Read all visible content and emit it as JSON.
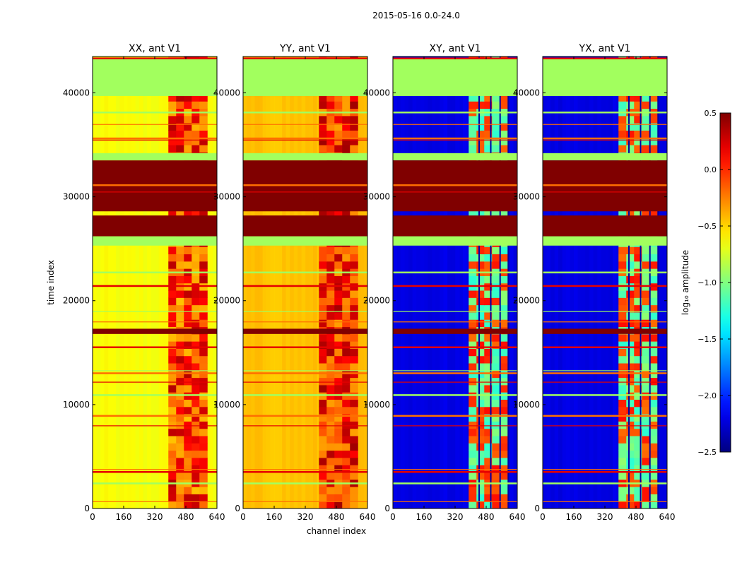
{
  "figure": {
    "suptitle": "2015-05-16 0.0-24.0",
    "ylabel": "time index",
    "xlabel": "channel index",
    "colorbar_label": "log₁₀ amplitude"
  },
  "chart_data": {
    "type": "heatmap",
    "colormap": "jet",
    "value_range": [
      -2.5,
      0.5
    ],
    "colorbar_ticks": [
      "0.5",
      "0.0",
      "−0.5",
      "−1.0",
      "−1.5",
      "−2.0",
      "−2.5"
    ],
    "colorbar_tick_values": [
      0.5,
      0.0,
      -0.5,
      -1.0,
      -1.5,
      -2.0,
      -2.5
    ],
    "x_range": [
      0,
      640
    ],
    "y_range": [
      0,
      43500
    ],
    "x_ticks": [
      "0",
      "160",
      "320",
      "480",
      "640"
    ],
    "x_tick_values": [
      0,
      160,
      320,
      480,
      640
    ],
    "y_ticks": [
      "0",
      "10000",
      "20000",
      "30000",
      "40000"
    ],
    "y_tick_values": [
      0,
      10000,
      20000,
      30000,
      40000
    ],
    "panels": [
      {
        "title": "XX, ant V1",
        "base_level": -0.65,
        "active_level": -0.3,
        "hot_level": 0.35
      },
      {
        "title": "YY, ant V1",
        "base_level": -0.45,
        "active_level": -0.2,
        "hot_level": 0.4
      },
      {
        "title": "XY, ant V1",
        "base_level": -2.2,
        "active_level": -1.1,
        "hot_level": 0.1
      },
      {
        "title": "YX, ant V1",
        "base_level": -2.2,
        "active_level": -1.1,
        "hot_level": 0.1
      }
    ],
    "flagged_time_ranges": [
      {
        "start": 26200,
        "end": 28200,
        "level": 0.5
      },
      {
        "start": 28600,
        "end": 33500,
        "level": 0.5
      },
      {
        "start": 16800,
        "end": 17300,
        "level": 0.5
      }
    ],
    "flat_time_ranges": [
      {
        "start": 39700,
        "end": 43300,
        "level": -0.9
      },
      {
        "start": 33500,
        "end": 34200,
        "level": -0.9
      },
      {
        "start": 25300,
        "end": 26200,
        "level": -0.9
      }
    ],
    "active_channel_range": [
      390,
      590
    ]
  }
}
